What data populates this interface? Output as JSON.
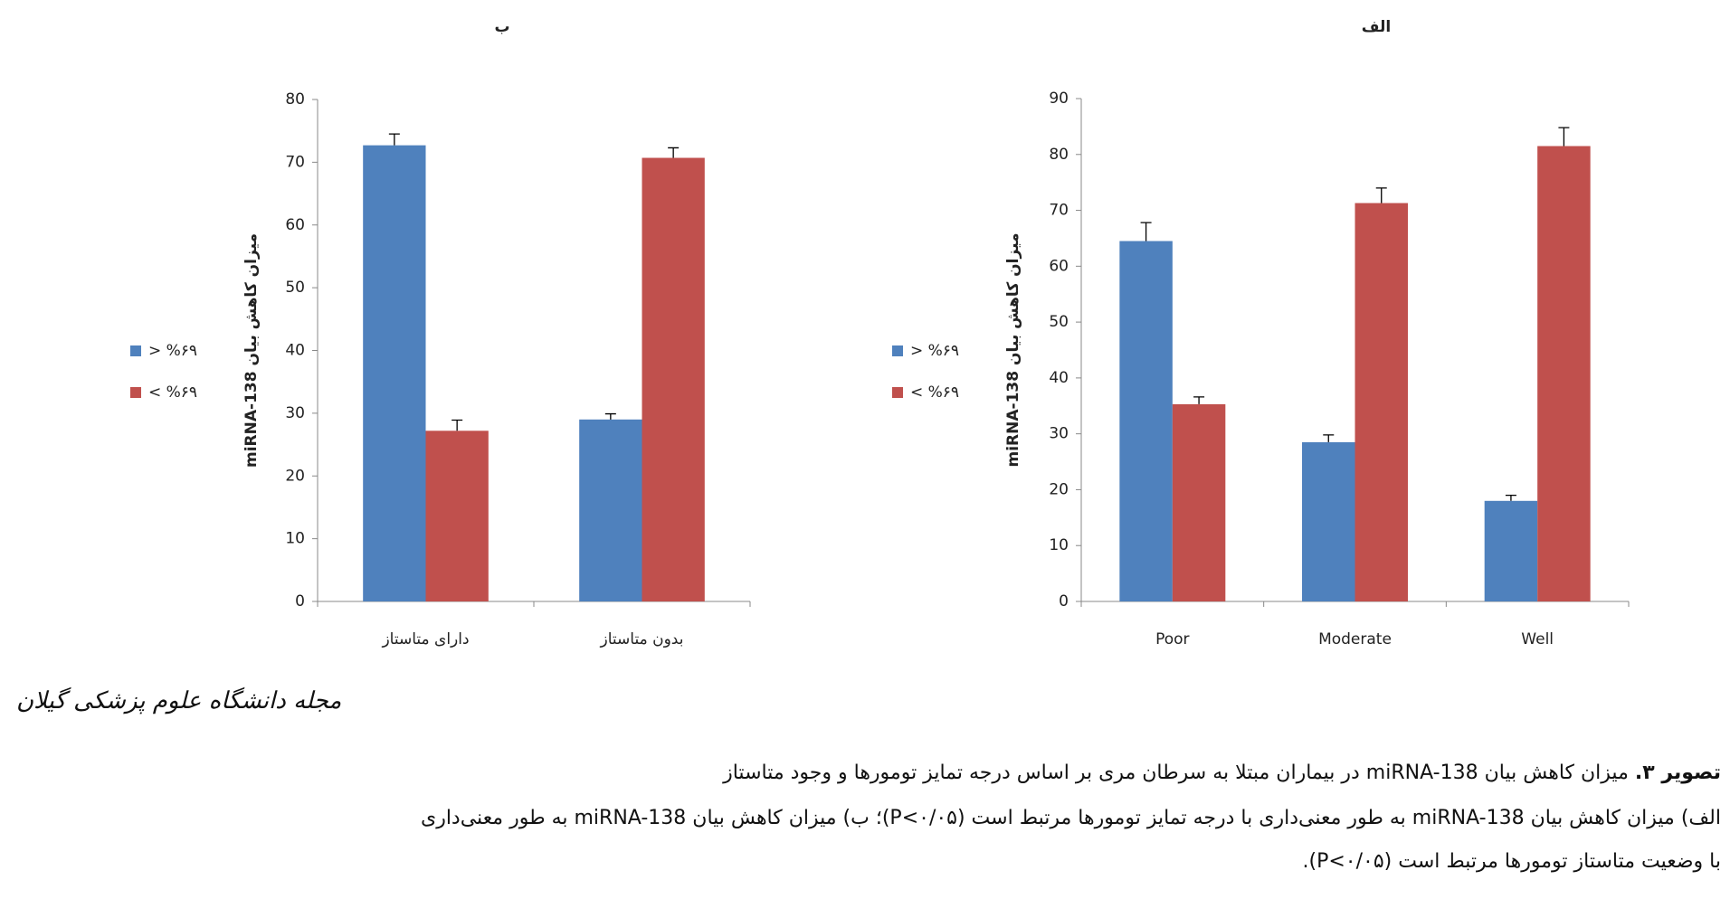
{
  "chart_data": [
    {
      "type": "bar",
      "title": "ب",
      "y_label": "میزان کاهش بیان miRNA-138",
      "categories": [
        "دارای متاستاز",
        "بدون متاستاز"
      ],
      "series": [
        {
          "name": "> %۶۹",
          "color": "#4f81bd",
          "values": [
            72.7,
            29
          ],
          "errors": [
            1.8,
            0.9
          ]
        },
        {
          "name": "< %۶۹",
          "color": "#c0504d",
          "values": [
            27.2,
            70.7
          ],
          "errors": [
            1.7,
            1.6
          ]
        }
      ],
      "ylim": [
        0,
        80
      ],
      "yticks": [
        0,
        10,
        20,
        30,
        40,
        50,
        60,
        70,
        80
      ],
      "legend": "left"
    },
    {
      "type": "bar",
      "title": "الف",
      "y_label": "میزان کاهش بیان miRNA-138",
      "categories": [
        "Poor",
        "Moderate",
        "Well"
      ],
      "series": [
        {
          "name": "> %۶۹",
          "color": "#4f81bd",
          "values": [
            64.5,
            28.5,
            18
          ],
          "errors": [
            3.3,
            1.3,
            1
          ]
        },
        {
          "name": "< %۶۹",
          "color": "#c0504d",
          "values": [
            35.3,
            71.3,
            81.5
          ],
          "errors": [
            1.3,
            2.7,
            3.3
          ]
        }
      ],
      "ylim": [
        0,
        90
      ],
      "yticks": [
        0,
        10,
        20,
        30,
        40,
        50,
        60,
        70,
        80,
        90
      ],
      "legend": "left"
    }
  ],
  "logo": "مجله دانشگاه علوم پزشکی گیلان",
  "caption": {
    "label": "تصویر ۳.",
    "lines": [
      "میزان کاهش بیان miRNA-138 در بیماران مبتلا به سرطان مری بر اساس درجه تمایز تومورها و وجود متاستاز",
      "الف) میزان کاهش بیان miRNA-138 به طور معنی‌داری با درجه تمایز تومورها مرتبط است (P<۰/۰۵)؛ ب) میزان کاهش بیان miRNA-138 به طور معنی‌داری",
      "با وضعیت متاستاز تومورها مرتبط است (P<۰/۰۵)."
    ]
  }
}
